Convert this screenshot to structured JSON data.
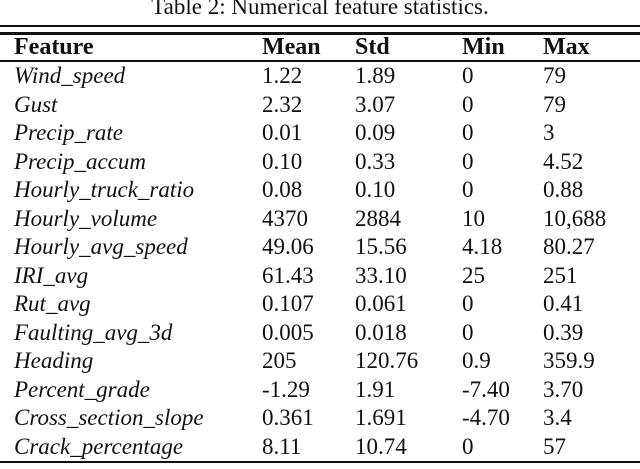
{
  "caption": "Table 2: Numerical feature statistics.",
  "table": {
    "columns": [
      "Feature",
      "Mean",
      "Std",
      "Min",
      "Max"
    ],
    "rows": [
      [
        "Wind_speed",
        "1.22",
        "1.89",
        "0",
        "79"
      ],
      [
        "Gust",
        "2.32",
        "3.07",
        "0",
        "79"
      ],
      [
        "Precip_rate",
        "0.01",
        "0.09",
        "0",
        "3"
      ],
      [
        "Precip_accum",
        "0.10",
        "0.33",
        "0",
        "4.52"
      ],
      [
        "Hourly_truck_ratio",
        "0.08",
        "0.10",
        "0",
        "0.88"
      ],
      [
        "Hourly_volume",
        "4370",
        "2884",
        "10",
        "10,688"
      ],
      [
        "Hourly_avg_speed",
        "49.06",
        "15.56",
        "4.18",
        "80.27"
      ],
      [
        "IRI_avg",
        "61.43",
        "33.10",
        "25",
        "251"
      ],
      [
        "Rut_avg",
        "0.107",
        "0.061",
        "0",
        "0.41"
      ],
      [
        "Faulting_avg_3d",
        "0.005",
        "0.018",
        "0",
        "0.39"
      ],
      [
        "Heading",
        "205",
        "120.76",
        "0.9",
        "359.9"
      ],
      [
        "Percent_grade",
        "-1.29",
        "1.91",
        "-7.40",
        "3.70"
      ],
      [
        "Cross_section_slope",
        "0.361",
        "1.691",
        "-4.70",
        "3.4"
      ],
      [
        "Crack_percentage",
        "8.11",
        "10.74",
        "0",
        "57"
      ]
    ]
  }
}
